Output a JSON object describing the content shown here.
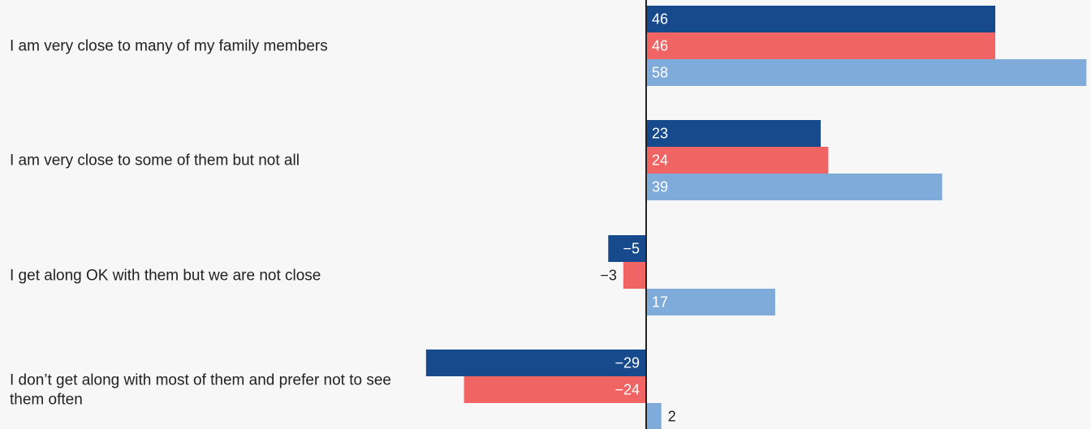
{
  "chart_data": {
    "type": "bar",
    "orientation": "horizontal",
    "title": "",
    "xlabel": "",
    "ylabel": "",
    "xlim": [
      -40,
      58
    ],
    "grid": false,
    "legend": "none",
    "categories": [
      "I am very close to many of my family members",
      "I am very close to some of them but not all",
      "I get along OK with them but we are not close",
      "I don’t get along with most of them and prefer not to see them often"
    ],
    "series": [
      {
        "color": "#174a8c",
        "values": [
          46,
          23,
          -5,
          -29
        ]
      },
      {
        "color": "#f06464",
        "values": [
          46,
          24,
          -3,
          -24
        ]
      },
      {
        "color": "#7fabda",
        "values": [
          58,
          39,
          17,
          2
        ]
      }
    ],
    "value_labels": [
      [
        "46",
        "23",
        "−5",
        "−29"
      ],
      [
        "46",
        "24",
        "−3",
        "−24"
      ],
      [
        "58",
        "39",
        "17",
        "2"
      ]
    ]
  }
}
